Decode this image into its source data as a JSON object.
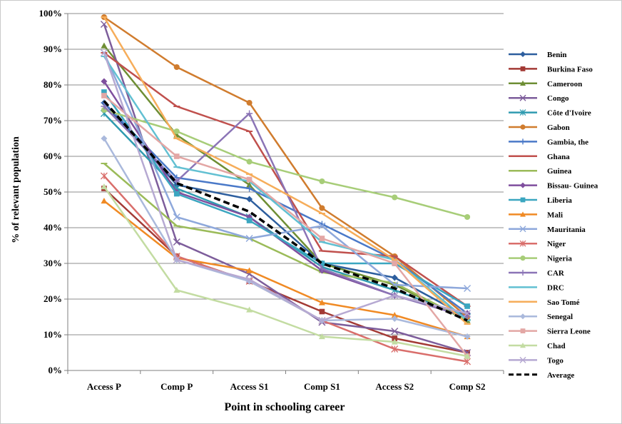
{
  "chart_data": {
    "type": "line",
    "title": "",
    "xlabel": "Point in schooling career",
    "ylabel": "% of relevant population",
    "categories": [
      "Access P",
      "Comp P",
      "Access S1",
      "Comp S1",
      "Access S2",
      "Comp S2"
    ],
    "ylim": [
      0,
      100
    ],
    "yticks": [
      "0%",
      "10%",
      "20%",
      "30%",
      "40%",
      "50%",
      "60%",
      "70%",
      "80%",
      "90%",
      "100%"
    ],
    "grid": "horizontal",
    "legend_position": "right",
    "series": [
      {
        "name": "Benin",
        "color": "#2d5e9e",
        "marker": "diamond",
        "values": [
          75,
          52,
          48,
          30,
          26,
          15
        ]
      },
      {
        "name": "Burkina Faso",
        "color": "#a33a35",
        "marker": "square",
        "values": [
          51,
          32,
          25,
          16.5,
          9,
          5
        ]
      },
      {
        "name": "Cameroon",
        "color": "#6e8e34",
        "marker": "triangle",
        "values": [
          91,
          66,
          52,
          30,
          24,
          14
        ]
      },
      {
        "name": "Congo",
        "color": "#7d5d9b",
        "marker": "x",
        "values": [
          97,
          36,
          27,
          13.5,
          11,
          5
        ]
      },
      {
        "name": "Côte d'Ivoire",
        "color": "#2f9bb0",
        "marker": "star",
        "values": [
          72,
          51,
          43,
          29,
          22.5,
          15
        ]
      },
      {
        "name": "Gabon",
        "color": "#d07c2e",
        "marker": "circle",
        "values": [
          99,
          85,
          75,
          45.5,
          32,
          15
        ]
      },
      {
        "name": "Gambia, the",
        "color": "#4a79c8",
        "marker": "plus",
        "values": [
          75,
          54,
          51,
          41,
          31,
          16
        ]
      },
      {
        "name": "Ghana",
        "color": "#c0504d",
        "marker": "dash",
        "values": [
          89,
          74,
          67,
          33.5,
          32,
          18
        ]
      },
      {
        "name": "Guinea",
        "color": "#9bbb59",
        "marker": "dash",
        "values": [
          58,
          40.5,
          37,
          27.5,
          24.5,
          14
        ]
      },
      {
        "name": "Bissau- Guinea",
        "color": "#7f4f9e",
        "marker": "diamond",
        "values": [
          81,
          50,
          43,
          28,
          21,
          16
        ]
      },
      {
        "name": "Liberia",
        "color": "#3ba6c0",
        "marker": "square",
        "values": [
          78,
          49.5,
          42,
          30,
          30,
          18
        ]
      },
      {
        "name": "Mali",
        "color": "#f08a24",
        "marker": "triangle",
        "values": [
          47.5,
          31.5,
          28,
          19,
          15.5,
          9.5
        ]
      },
      {
        "name": "Mauritania",
        "color": "#8ea8db",
        "marker": "x",
        "values": [
          89,
          43,
          37,
          40.5,
          24,
          23
        ]
      },
      {
        "name": "Niger",
        "color": "#d96e6b",
        "marker": "star",
        "values": [
          54.5,
          32,
          25,
          14,
          6,
          2.5
        ]
      },
      {
        "name": "Nigeria",
        "color": "#a7cd78",
        "marker": "circle",
        "values": [
          73,
          67,
          58.5,
          53,
          48.5,
          43
        ]
      },
      {
        "name": "CAR",
        "color": "#8b74b6",
        "marker": "plus",
        "values": [
          74,
          53,
          72,
          28.5,
          21,
          15
        ]
      },
      {
        "name": "DRC",
        "color": "#62c0d2",
        "marker": "dash",
        "values": [
          88,
          57,
          53,
          36,
          31,
          14
        ]
      },
      {
        "name": "Sao Tomé",
        "color": "#f6ad5a",
        "marker": "dash",
        "values": [
          99,
          65,
          55,
          44,
          31,
          13
        ]
      },
      {
        "name": "Senegal",
        "color": "#aab9dc",
        "marker": "diamond",
        "values": [
          65,
          31,
          25,
          14,
          14.5,
          9.5
        ]
      },
      {
        "name": "Sierra Leone",
        "color": "#e3a7a5",
        "marker": "square",
        "values": [
          77,
          60,
          53.5,
          37,
          30,
          4
        ]
      },
      {
        "name": "Chad",
        "color": "#c3dca2",
        "marker": "triangle",
        "values": [
          51.5,
          22.5,
          17,
          9.5,
          8,
          4
        ]
      },
      {
        "name": "Togo",
        "color": "#b6a9d2",
        "marker": "x",
        "values": [
          89,
          31,
          25.5,
          14,
          21,
          16
        ]
      },
      {
        "name": "Average",
        "color": "#000000",
        "marker": "none",
        "dashed": true,
        "values": [
          75.5,
          52.5,
          44.5,
          30,
          23,
          14
        ]
      }
    ]
  }
}
